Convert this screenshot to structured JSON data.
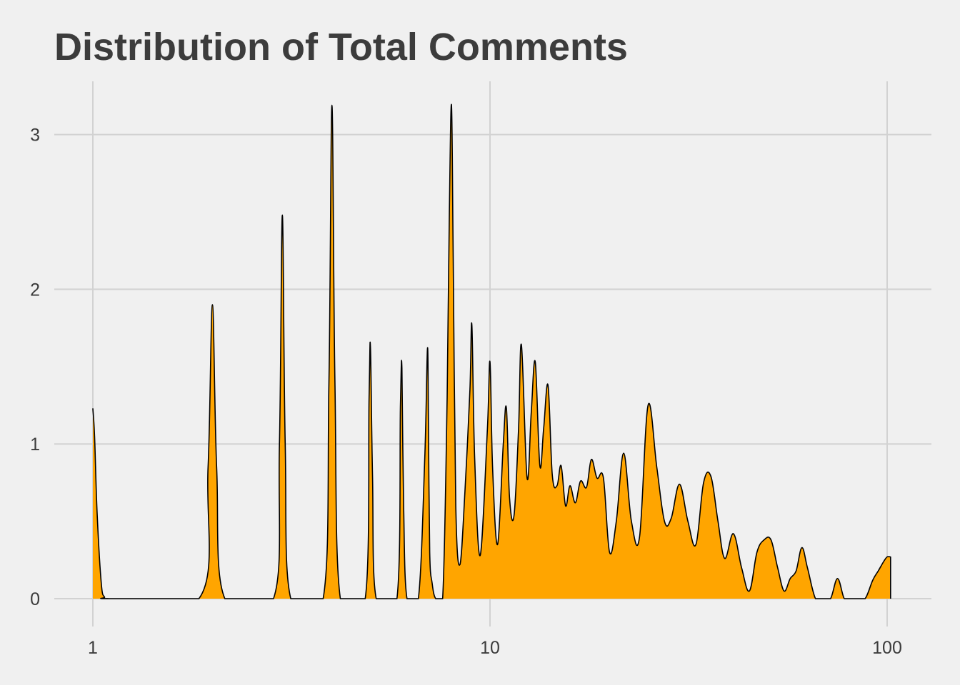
{
  "chart_data": {
    "type": "area",
    "title": "Distribution of  Total Comments",
    "xlabel": "",
    "ylabel": "",
    "x_scale": "log10",
    "xlim": [
      1,
      102
    ],
    "ylim": [
      0,
      3.2
    ],
    "x_ticks": [
      1,
      10,
      100
    ],
    "x_tick_labels": [
      "1",
      "10",
      "100"
    ],
    "y_ticks": [
      0,
      1,
      2,
      3
    ],
    "y_tick_labels": [
      "0",
      "1",
      "2",
      "3"
    ],
    "grid": true,
    "legend": "none",
    "fill_color": "#ffa500",
    "line_color": "#000000",
    "background_color": "#f0f0f0",
    "grid_color": "#d2d2d2",
    "series": [
      {
        "x": [
          1.0,
          1.01,
          1.025,
          1.05,
          1.07,
          1.1,
          1.85,
          1.95,
          2.0,
          2.05,
          2.15,
          2.85,
          2.95,
          3.0,
          3.05,
          3.15,
          3.8,
          3.93,
          4.0,
          4.07,
          4.2,
          4.85,
          4.96,
          5.0,
          5.06,
          5.17,
          5.83,
          5.95,
          6.0,
          6.06,
          6.18,
          6.6,
          6.85,
          6.96,
          7.0,
          7.05,
          7.15,
          7.3,
          7.6,
          7.8,
          7.9,
          8.0,
          8.08,
          8.2,
          8.4,
          8.65,
          8.9,
          9.0,
          9.15,
          9.45,
          9.85,
          10.0,
          10.15,
          10.45,
          10.8,
          11.0,
          11.2,
          11.5,
          11.8,
          12.0,
          12.4,
          12.7,
          13.0,
          13.35,
          13.65,
          14.0,
          14.35,
          14.75,
          15.1,
          15.5,
          15.9,
          16.4,
          16.9,
          17.5,
          18.0,
          18.6,
          19.3,
          20.0,
          20.8,
          21.7,
          22.7,
          23.8,
          25.0,
          26.3,
          27.5,
          28.6,
          30.0,
          31.5,
          33.0,
          34.5,
          36.0,
          37.5,
          39.0,
          41.0,
          43.0,
          45.0,
          47.0,
          49.0,
          51.0,
          53.0,
          55.0,
          57.0,
          59.0,
          61.0,
          63.0,
          66.0,
          69.0,
          72.0,
          75.0,
          78.0,
          81.0,
          84.0,
          88.0,
          92.0,
          95.0,
          98.0,
          100.0,
          102.0
        ],
        "y": [
          1.23,
          1.05,
          0.55,
          0.1,
          0.01,
          0.0,
          0.0,
          0.85,
          1.9,
          0.85,
          0.0,
          0.0,
          1.0,
          2.48,
          1.0,
          0.0,
          0.0,
          1.4,
          3.19,
          1.4,
          0.0,
          0.0,
          1.3,
          1.63,
          0.8,
          0.0,
          0.0,
          1.25,
          1.49,
          0.6,
          0.0,
          0.0,
          0.9,
          1.62,
          1.1,
          0.3,
          0.1,
          0.0,
          0.0,
          1.3,
          2.5,
          3.19,
          2.2,
          0.6,
          0.22,
          0.7,
          1.35,
          1.77,
          0.9,
          0.28,
          1.1,
          1.53,
          0.85,
          0.35,
          1.0,
          1.23,
          0.65,
          0.54,
          1.1,
          1.64,
          0.78,
          1.2,
          1.53,
          0.86,
          1.1,
          1.38,
          0.8,
          0.73,
          0.86,
          0.6,
          0.73,
          0.62,
          0.76,
          0.72,
          0.9,
          0.78,
          0.78,
          0.3,
          0.5,
          0.94,
          0.5,
          0.4,
          1.25,
          0.85,
          0.5,
          0.52,
          0.74,
          0.5,
          0.35,
          0.75,
          0.79,
          0.5,
          0.26,
          0.42,
          0.2,
          0.05,
          0.3,
          0.38,
          0.38,
          0.2,
          0.05,
          0.13,
          0.18,
          0.33,
          0.2,
          0.0,
          0.0,
          0.0,
          0.13,
          0.0,
          0.0,
          0.0,
          0.0,
          0.12,
          0.18,
          0.24,
          0.27,
          0.27
        ]
      }
    ]
  }
}
